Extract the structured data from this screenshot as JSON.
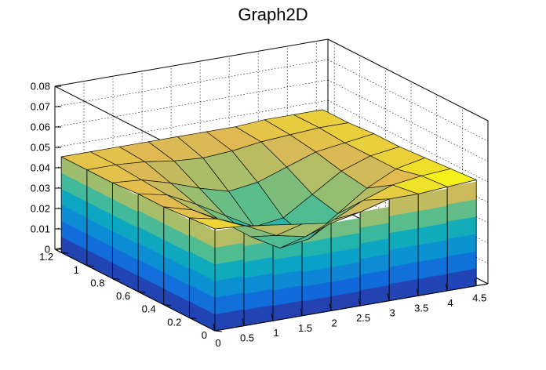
{
  "chart_data": {
    "type": "surface",
    "title": "Graph2D",
    "xlabel": "",
    "ylabel": "",
    "zlabel": "",
    "xlim": [
      0,
      4.7
    ],
    "ylim": [
      0,
      1.25
    ],
    "zlim": [
      0,
      0.08
    ],
    "x_ticks": [
      "0",
      "0.5",
      "1",
      "1.5",
      "2",
      "2.5",
      "3",
      "3.5",
      "4",
      "4.5"
    ],
    "y_ticks": [
      "0",
      "0.2",
      "0.4",
      "0.6",
      "0.8",
      "1",
      "1.2"
    ],
    "z_ticks": [
      "0",
      "0.01",
      "0.02",
      "0.03",
      "0.04",
      "0.05",
      "0.06",
      "0.07",
      "0.08"
    ],
    "grid": true,
    "colormap": "viridis-like (blue to yellow)",
    "grid_x": [
      0,
      0.5,
      1,
      1.5,
      2,
      2.5,
      3,
      3.5,
      4,
      4.5
    ],
    "grid_y": [
      0,
      0.2,
      0.4,
      0.6,
      0.8,
      1.0,
      1.2
    ],
    "z": [
      [
        0.05,
        0.049,
        0.047,
        0.045,
        0.043,
        0.046,
        0.05,
        0.05,
        0.051,
        0.052
      ],
      [
        0.049,
        0.046,
        0.04,
        0.033,
        0.03,
        0.036,
        0.043,
        0.048,
        0.05,
        0.051
      ],
      [
        0.048,
        0.044,
        0.036,
        0.026,
        0.018,
        0.02,
        0.03,
        0.04,
        0.047,
        0.05
      ],
      [
        0.048,
        0.045,
        0.038,
        0.03,
        0.022,
        0.024,
        0.033,
        0.042,
        0.047,
        0.049
      ],
      [
        0.047,
        0.046,
        0.042,
        0.037,
        0.033,
        0.035,
        0.04,
        0.045,
        0.047,
        0.049
      ],
      [
        0.047,
        0.047,
        0.046,
        0.044,
        0.043,
        0.044,
        0.046,
        0.047,
        0.048,
        0.048
      ],
      [
        0.047,
        0.047,
        0.047,
        0.047,
        0.047,
        0.047,
        0.047,
        0.048,
        0.048,
        0.048
      ]
    ]
  }
}
